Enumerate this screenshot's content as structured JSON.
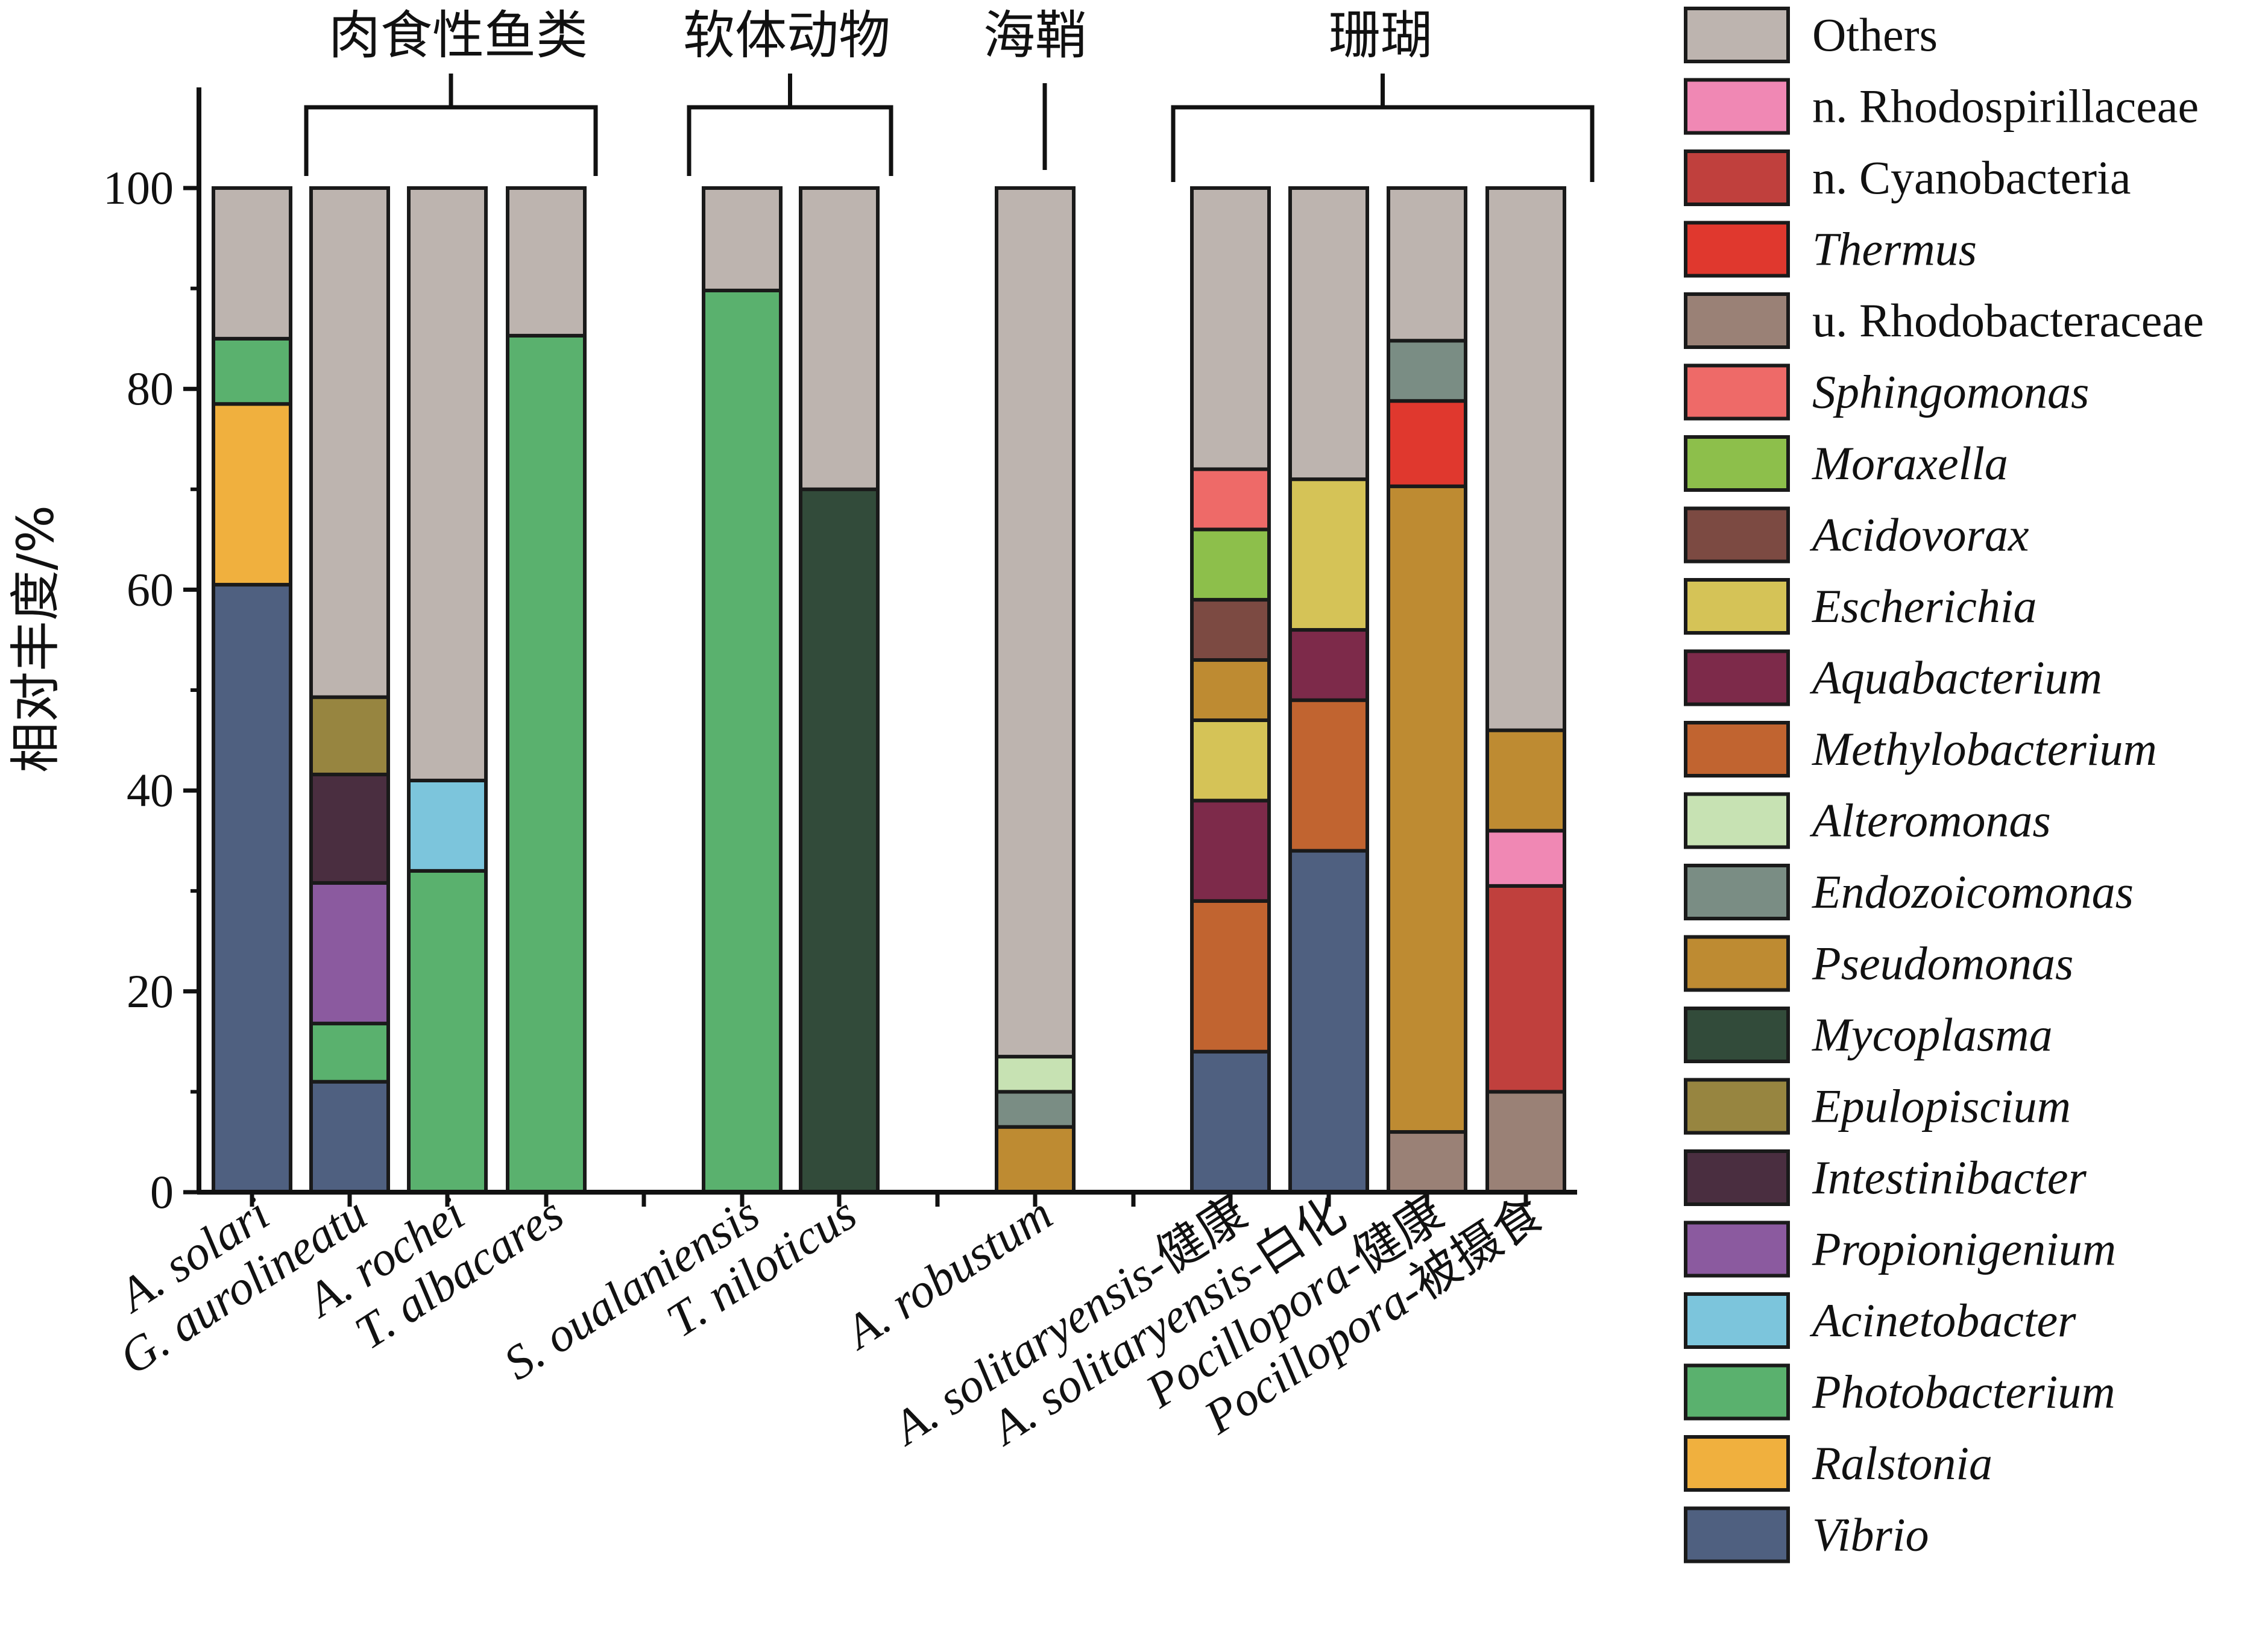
{
  "chart_data": {
    "type": "bar",
    "stacked": true,
    "ylabel": "相对丰度/%",
    "ylim": [
      0,
      100
    ],
    "yticks": [
      0,
      20,
      40,
      60,
      80,
      100
    ],
    "legend_placement": "right",
    "groups": [
      {
        "label": "肉食性鱼类",
        "members": [
          "G. aurolineatu",
          "A. rochei",
          "T. albacares"
        ]
      },
      {
        "label": "软体动物",
        "members": [
          "S. oualaniensis",
          "T. niloticus"
        ]
      },
      {
        "label": "海鞘",
        "members": [
          "A. robustum"
        ]
      },
      {
        "label": "珊瑚",
        "members": [
          "A. solitaryensis-健康",
          "A. solitaryensis-白化",
          "Pocillopora-健康",
          "Pocillopora-被摄食"
        ]
      }
    ],
    "series": [
      {
        "name": "Others",
        "italic": false,
        "color": "#BDB4AF"
      },
      {
        "name": "n. Rhodospirillaceae",
        "italic": false,
        "color": "#F088B4"
      },
      {
        "name": "n. Cyanobacteria",
        "italic": false,
        "color": "#C0403D"
      },
      {
        "name": "Thermus",
        "italic": true,
        "color": "#E0382E"
      },
      {
        "name": "u. Rhodobacteraceae",
        "italic": false,
        "color": "#9A8176"
      },
      {
        "name": "Sphingomonas",
        "italic": true,
        "color": "#EE6A68"
      },
      {
        "name": "Moraxella",
        "italic": true,
        "color": "#8DBF4B"
      },
      {
        "name": "Acidovorax",
        "italic": true,
        "color": "#7C4A42"
      },
      {
        "name": "Escherichia",
        "italic": true,
        "color": "#D5C357"
      },
      {
        "name": "Aquabacterium",
        "italic": true,
        "color": "#7D2A4A"
      },
      {
        "name": "Methylobacterium",
        "italic": true,
        "color": "#C16430"
      },
      {
        "name": "Alteromonas",
        "italic": true,
        "color": "#C7E2B3"
      },
      {
        "name": "Endozoicomonas",
        "italic": true,
        "color": "#7A8D84"
      },
      {
        "name": "Pseudomonas",
        "italic": true,
        "color": "#BE8B32"
      },
      {
        "name": "Mycoplasma",
        "italic": true,
        "color": "#324B3A"
      },
      {
        "name": "Epulopiscium",
        "italic": true,
        "color": "#978540"
      },
      {
        "name": "Intestinibacter",
        "italic": true,
        "color": "#4A2E40"
      },
      {
        "name": "Propionigenium",
        "italic": true,
        "color": "#8B5A9F"
      },
      {
        "name": "Acinetobacter",
        "italic": true,
        "color": "#7CC5DC"
      },
      {
        "name": "Photobacterium",
        "italic": true,
        "color": "#5AB16E"
      },
      {
        "name": "Ralstonia",
        "italic": true,
        "color": "#F0B03E"
      },
      {
        "name": "Vibrio",
        "italic": true,
        "color": "#4F6080"
      }
    ],
    "samples": [
      {
        "label": "A. solari",
        "stack": [
          {
            "series": "Vibrio",
            "value": 60.5
          },
          {
            "series": "Ralstonia",
            "value": 18
          },
          {
            "series": "Photobacterium",
            "value": 6.5
          },
          {
            "series": "Others",
            "value": 15
          }
        ]
      },
      {
        "label": "G. aurolineatu",
        "stack": [
          {
            "series": "Vibrio",
            "value": 11
          },
          {
            "series": "Photobacterium",
            "value": 5.8
          },
          {
            "series": "Propionigenium",
            "value": 14
          },
          {
            "series": "Intestinibacter",
            "value": 10.8
          },
          {
            "series": "Epulopiscium",
            "value": 7.7
          },
          {
            "series": "Others",
            "value": 50.7
          }
        ]
      },
      {
        "label": "A. rochei",
        "stack": [
          {
            "series": "Photobacterium",
            "value": 32
          },
          {
            "series": "Acinetobacter",
            "value": 9
          },
          {
            "series": "Others",
            "value": 59
          }
        ]
      },
      {
        "label": "T. albacares",
        "stack": [
          {
            "series": "Photobacterium",
            "value": 85.3
          },
          {
            "series": "Others",
            "value": 14.7
          }
        ]
      },
      {
        "label": "S. oualaniensis",
        "stack": [
          {
            "series": "Photobacterium",
            "value": 89.8
          },
          {
            "series": "Others",
            "value": 10.2
          }
        ]
      },
      {
        "label": "T. niloticus",
        "stack": [
          {
            "series": "Mycoplasma",
            "value": 70
          },
          {
            "series": "Others",
            "value": 30
          }
        ]
      },
      {
        "label": "A. robustum",
        "stack": [
          {
            "series": "Pseudomonas",
            "value": 6.5
          },
          {
            "series": "Endozoicomonas",
            "value": 3.5
          },
          {
            "series": "Alteromonas",
            "value": 3.5
          },
          {
            "series": "Others",
            "value": 86.5
          }
        ]
      },
      {
        "label": "A. solitaryensis-健康",
        "stack": [
          {
            "series": "Vibrio",
            "value": 14
          },
          {
            "series": "Methylobacterium",
            "value": 15
          },
          {
            "series": "Aquabacterium",
            "value": 10
          },
          {
            "series": "Escherichia",
            "value": 8
          },
          {
            "series": "Pseudomonas",
            "value": 6
          },
          {
            "series": "Acidovorax",
            "value": 6
          },
          {
            "series": "Moraxella",
            "value": 7
          },
          {
            "series": "Sphingomonas",
            "value": 6
          },
          {
            "series": "Others",
            "value": 28
          }
        ]
      },
      {
        "label": "A. solitaryensis-白化",
        "stack": [
          {
            "series": "Vibrio",
            "value": 34
          },
          {
            "series": "Methylobacterium",
            "value": 15
          },
          {
            "series": "Aquabacterium",
            "value": 7
          },
          {
            "series": "Escherichia",
            "value": 15
          },
          {
            "series": "Others",
            "value": 29
          }
        ]
      },
      {
        "label": "Pocillopora-健康",
        "stack": [
          {
            "series": "u. Rhodobacteraceae",
            "value": 6
          },
          {
            "series": "Pseudomonas",
            "value": 64.3
          },
          {
            "series": "Thermus",
            "value": 8.5
          },
          {
            "series": "Endozoicomonas",
            "value": 6
          },
          {
            "series": "Others",
            "value": 15.2
          }
        ]
      },
      {
        "label": "Pocillopora-被摄食",
        "stack": [
          {
            "series": "u. Rhodobacteraceae",
            "value": 10
          },
          {
            "series": "n. Cyanobacteria",
            "value": 20.5
          },
          {
            "series": "n. Rhodospirillaceae",
            "value": 5.5
          },
          {
            "series": "Pseudomonas",
            "value": 10
          },
          {
            "series": "Others",
            "value": 54
          }
        ]
      }
    ]
  }
}
